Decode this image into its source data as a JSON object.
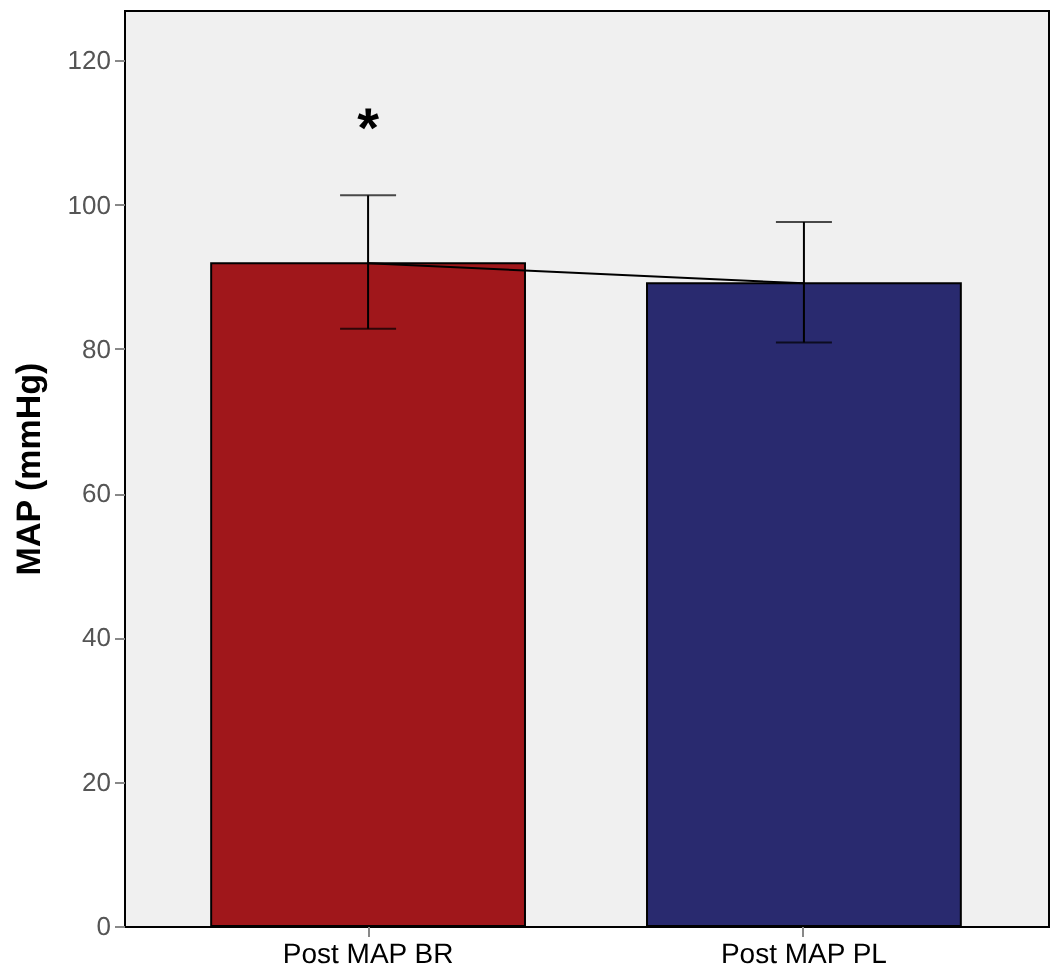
{
  "chart_data": {
    "type": "bar",
    "ylabel": "MAP (mmHg)",
    "categories": [
      "Post MAP BR",
      "Post MAP PL"
    ],
    "ylim": [
      0,
      127
    ],
    "yticks": [
      0,
      20,
      40,
      60,
      80,
      100,
      120
    ],
    "grid": false,
    "series": [
      {
        "values": [
          91.9,
          89.1
        ],
        "colors": [
          "#a0171b",
          "#292a6f"
        ],
        "errors": [
          [
            82.8,
            101.3
          ],
          [
            80.9,
            97.6
          ]
        ]
      },
      {
        "type": "line",
        "values": [
          91.9,
          89.1
        ],
        "color": "#000000",
        "marker": "none",
        "line_style": "solid"
      }
    ],
    "annotations": [
      "*"
    ]
  }
}
